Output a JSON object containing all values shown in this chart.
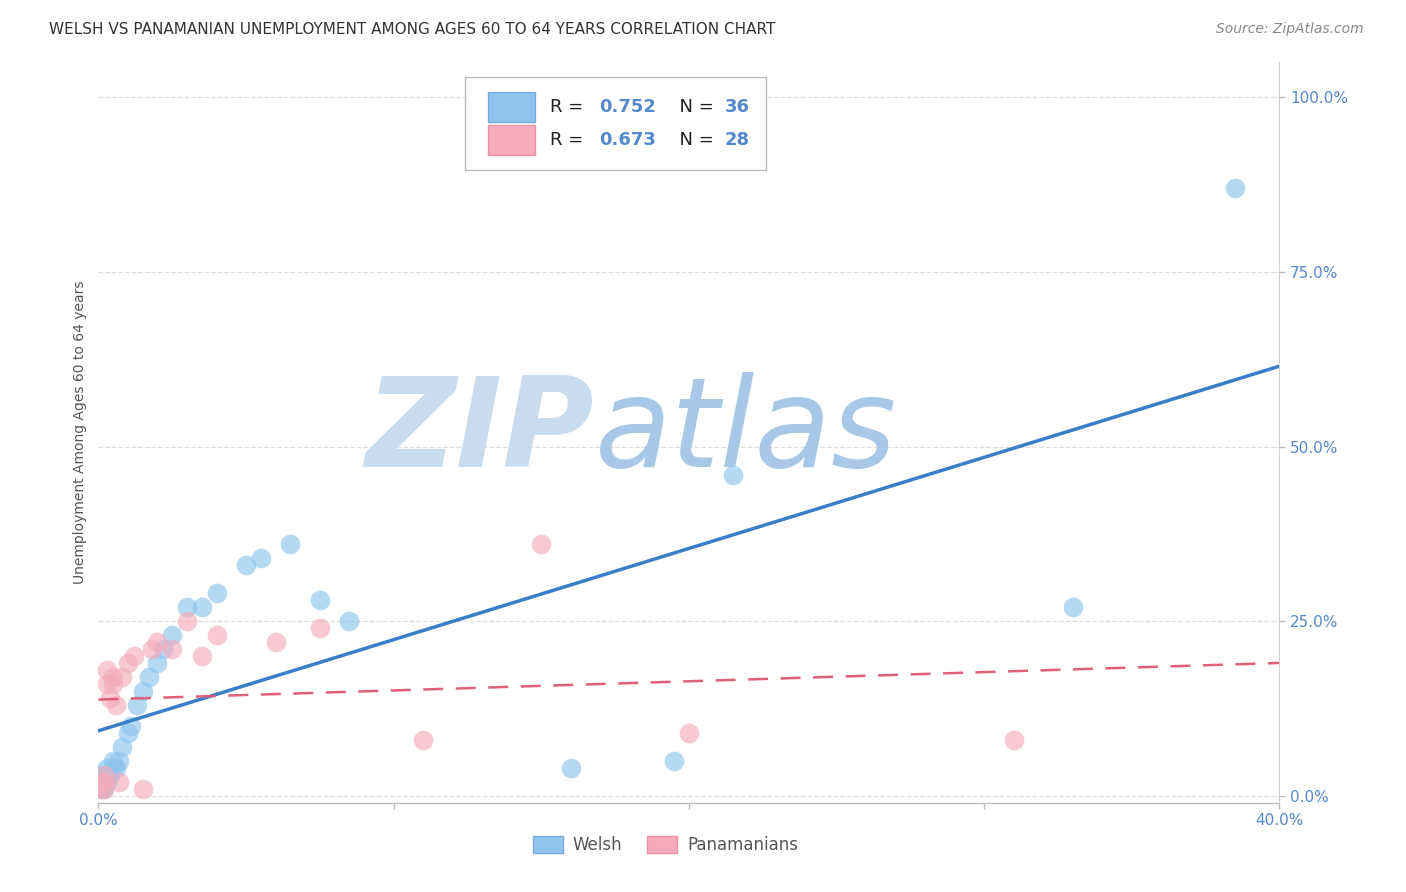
{
  "title": "WELSH VS PANAMANIAN UNEMPLOYMENT AMONG AGES 60 TO 64 YEARS CORRELATION CHART",
  "source": "Source: ZipAtlas.com",
  "ylabel": "Unemployment Among Ages 60 to 64 years",
  "xlim": [
    0.0,
    0.4
  ],
  "ylim": [
    -0.01,
    1.05
  ],
  "xticks": [
    0.0,
    0.1,
    0.2,
    0.3,
    0.4
  ],
  "yticks": [
    0.0,
    0.25,
    0.5,
    0.75,
    1.0
  ],
  "ytick_labels": [
    "0.0%",
    "25.0%",
    "50.0%",
    "75.0%",
    "100.0%"
  ],
  "xtick_labels": [
    "0.0%",
    "",
    "",
    "",
    "40.0%"
  ],
  "welsh_color": "#8EC4EE",
  "panamanian_color": "#F4ACBC",
  "welsh_line_color": "#3A7EC6",
  "panamanian_line_color": "#E0607A",
  "welsh_R": 0.752,
  "welsh_N": 36,
  "panamanian_R": 0.673,
  "panamanian_N": 28,
  "welsh_scatter_x": [
    0.001,
    0.001,
    0.001,
    0.002,
    0.002,
    0.002,
    0.003,
    0.003,
    0.003,
    0.004,
    0.005,
    0.005,
    0.006,
    0.007,
    0.008,
    0.01,
    0.011,
    0.013,
    0.015,
    0.017,
    0.02,
    0.022,
    0.025,
    0.03,
    0.035,
    0.04,
    0.05,
    0.055,
    0.065,
    0.075,
    0.085,
    0.16,
    0.195,
    0.215,
    0.33,
    0.385
  ],
  "welsh_scatter_y": [
    0.01,
    0.02,
    0.03,
    0.01,
    0.02,
    0.03,
    0.02,
    0.03,
    0.04,
    0.03,
    0.04,
    0.05,
    0.04,
    0.05,
    0.07,
    0.09,
    0.1,
    0.13,
    0.15,
    0.17,
    0.19,
    0.21,
    0.23,
    0.27,
    0.27,
    0.29,
    0.33,
    0.34,
    0.36,
    0.28,
    0.25,
    0.04,
    0.05,
    0.46,
    0.27,
    0.87
  ],
  "panamanian_scatter_x": [
    0.001,
    0.001,
    0.002,
    0.002,
    0.002,
    0.003,
    0.003,
    0.004,
    0.005,
    0.005,
    0.006,
    0.007,
    0.008,
    0.01,
    0.012,
    0.015,
    0.018,
    0.02,
    0.025,
    0.03,
    0.035,
    0.04,
    0.06,
    0.075,
    0.11,
    0.15,
    0.2,
    0.31
  ],
  "panamanian_scatter_y": [
    0.01,
    0.02,
    0.01,
    0.02,
    0.03,
    0.16,
    0.18,
    0.14,
    0.16,
    0.17,
    0.13,
    0.02,
    0.17,
    0.19,
    0.2,
    0.01,
    0.21,
    0.22,
    0.21,
    0.25,
    0.2,
    0.23,
    0.22,
    0.24,
    0.08,
    0.36,
    0.09,
    0.08
  ],
  "background_color": "#FFFFFF",
  "watermark_zip_color": "#C8DCF0",
  "watermark_atlas_color": "#A8C8E8",
  "grid_color": "#DDDDDD",
  "tick_color": "#5588CC",
  "title_fontsize": 11,
  "source_fontsize": 10,
  "axis_label_fontsize": 10,
  "tick_fontsize": 11,
  "legend_fontsize": 13
}
